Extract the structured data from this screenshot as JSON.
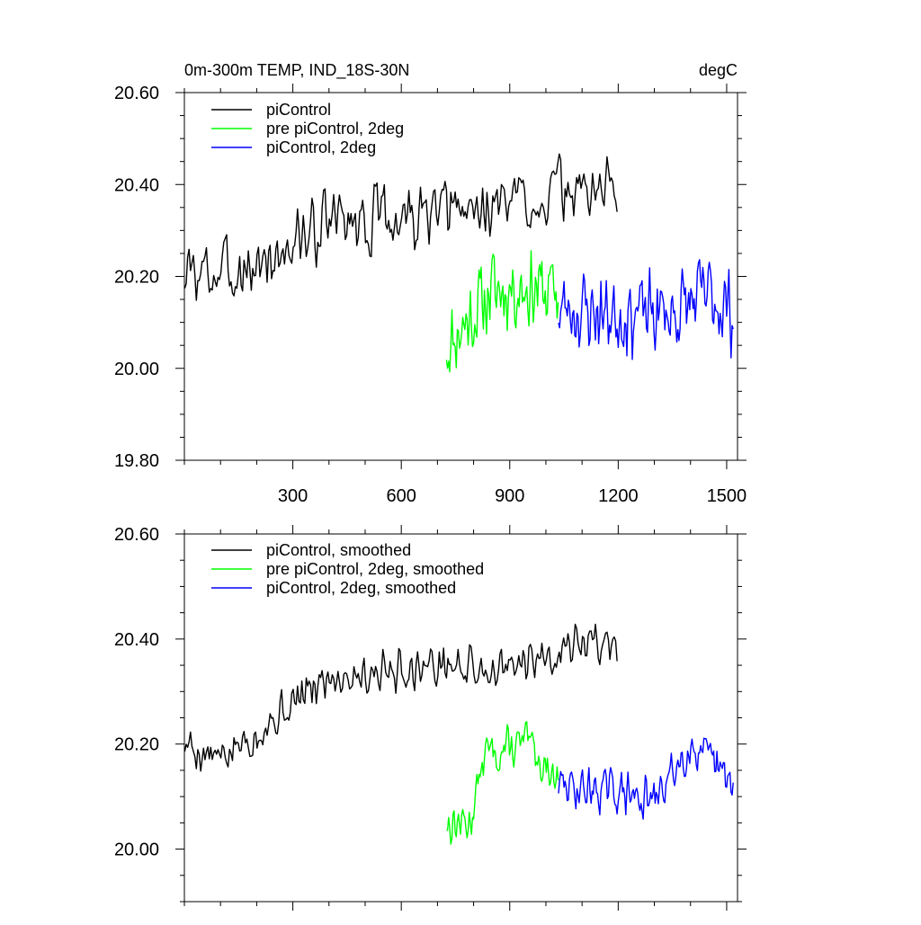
{
  "chart_data": [
    {
      "type": "line",
      "title_left": "0m-300m TEMP, IND_18S-30N",
      "title_right": "degC",
      "xlabel": "",
      "ylabel": "",
      "xlim": [
        0,
        1530
      ],
      "ylim": [
        19.8,
        20.6
      ],
      "xticks": [
        300,
        600,
        900,
        1200,
        1500
      ],
      "xtick_labels": [
        "300",
        "600",
        "900",
        "1200",
        "1500"
      ],
      "yticks": [
        19.8,
        20.0,
        20.2,
        20.4,
        20.6
      ],
      "ytick_labels": [
        "19.80",
        "20.00",
        "20.20",
        "20.40",
        "20.60"
      ],
      "legend": "top-left",
      "series": [
        {
          "name": "piControl",
          "color": "#000000",
          "start": 1,
          "end": 1200,
          "step": 4,
          "anchors": [
            [
              1,
              20.2
            ],
            [
              200,
              20.22
            ],
            [
              400,
              20.32
            ],
            [
              700,
              20.33
            ],
            [
              950,
              20.37
            ],
            [
              1200,
              20.4
            ]
          ],
          "amplitude": 0.09,
          "seed": 3
        },
        {
          "name": "pre piControl, 2deg",
          "color": "#00ff00",
          "start": 725,
          "end": 1035,
          "step": 3,
          "anchors": [
            [
              725,
              20.05
            ],
            [
              800,
              20.12
            ],
            [
              850,
              20.17
            ],
            [
              950,
              20.18
            ],
            [
              1035,
              20.16
            ]
          ],
          "amplitude": 0.11,
          "seed": 11
        },
        {
          "name": "piControl, 2deg",
          "color": "#0000ff",
          "start": 1035,
          "end": 1520,
          "step": 3,
          "anchors": [
            [
              1035,
              20.13
            ],
            [
              1200,
              20.12
            ],
            [
              1350,
              20.12
            ],
            [
              1450,
              20.16
            ],
            [
              1520,
              20.12
            ]
          ],
          "amplitude": 0.11,
          "seed": 23
        }
      ]
    },
    {
      "type": "line",
      "title_left": "",
      "title_right": "",
      "xlabel": "",
      "ylabel": "",
      "xlim": [
        0,
        1530
      ],
      "ylim": [
        19.9,
        20.6
      ],
      "xticks": [
        300,
        600,
        900,
        1200,
        1500
      ],
      "xtick_labels": [],
      "yticks": [
        20.0,
        20.2,
        20.4,
        20.6
      ],
      "ytick_labels": [
        "20.00",
        "20.20",
        "20.40",
        "20.60"
      ],
      "legend": "top-left",
      "series": [
        {
          "name": "piControl, smoothed",
          "color": "#000000",
          "start": 1,
          "end": 1200,
          "step": 4,
          "anchors": [
            [
              1,
              20.2
            ],
            [
              100,
              20.17
            ],
            [
              250,
              20.25
            ],
            [
              400,
              20.33
            ],
            [
              700,
              20.35
            ],
            [
              900,
              20.34
            ],
            [
              1100,
              20.4
            ],
            [
              1200,
              20.38
            ]
          ],
          "amplitude": 0.05,
          "seed": 5
        },
        {
          "name": "pre piControl, 2deg, smoothed",
          "color": "#00ff00",
          "start": 725,
          "end": 1035,
          "step": 3,
          "anchors": [
            [
              725,
              20.05
            ],
            [
              790,
              20.05
            ],
            [
              830,
              20.18
            ],
            [
              950,
              20.2
            ],
            [
              1035,
              20.13
            ]
          ],
          "amplitude": 0.05,
          "seed": 13
        },
        {
          "name": "piControl, 2deg, smoothed",
          "color": "#0000ff",
          "start": 1035,
          "end": 1520,
          "step": 3,
          "anchors": [
            [
              1035,
              20.12
            ],
            [
              1200,
              20.11
            ],
            [
              1300,
              20.09
            ],
            [
              1400,
              20.2
            ],
            [
              1520,
              20.12
            ]
          ],
          "amplitude": 0.05,
          "seed": 29
        }
      ]
    }
  ]
}
